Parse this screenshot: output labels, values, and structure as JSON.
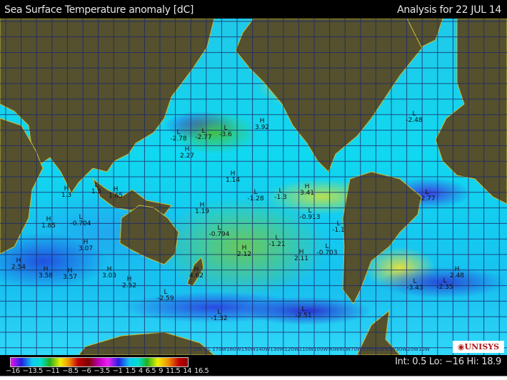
{
  "header": {
    "title": "Sea Surface Temperature anomaly [dC]",
    "analysis": "Analysis for 22 JUL 14"
  },
  "legend": {
    "ticks": [
      "−16",
      "−13.5",
      "−11",
      "−8.5",
      "−6",
      "−3.5",
      "−1",
      "1.5",
      "4",
      "6.5",
      "9",
      "11.5",
      "14",
      "16.5"
    ],
    "info": "Int: 0.5 Lo: −16 Hi: 18.9"
  },
  "logo": "UNISYS",
  "longitude_labels": "20E DL 170W160W150W140W130W120W110W100W90W80W70W60W50W40W30W20W10W",
  "extrema": [
    {
      "type": "H",
      "value": "3.92"
    },
    {
      "type": "L",
      "value": "-2.78"
    },
    {
      "type": "L",
      "value": "-2.77"
    },
    {
      "type": "L",
      "value": "-3.6"
    },
    {
      "type": "H",
      "value": "2.27"
    },
    {
      "type": "H",
      "value": "1.14"
    },
    {
      "type": "L",
      "value": "-1.28"
    },
    {
      "type": "H",
      "value": "1.3"
    },
    {
      "type": "L",
      "value": "1.5"
    },
    {
      "type": "H",
      "value": "1.65"
    },
    {
      "type": "H",
      "value": "1.19"
    },
    {
      "type": "L",
      "value": "-1.3"
    },
    {
      "type": "H",
      "value": "3.41"
    },
    {
      "type": "L",
      "value": "-2.48"
    },
    {
      "type": "L",
      "value": "-2.77"
    },
    {
      "type": "H",
      "value": "1.85"
    },
    {
      "type": "L",
      "value": "-0.704"
    },
    {
      "type": "L",
      "value": "-0.794"
    },
    {
      "type": "H",
      "value": "2.12"
    },
    {
      "type": "L",
      "value": "-0.913"
    },
    {
      "type": "L",
      "value": "-1.1"
    },
    {
      "type": "L",
      "value": "-1.21"
    },
    {
      "type": "H",
      "value": "2.11"
    },
    {
      "type": "L",
      "value": "-0.703"
    },
    {
      "type": "H",
      "value": "3.07"
    },
    {
      "type": "H",
      "value": "2.54"
    },
    {
      "type": "H",
      "value": "3.58"
    },
    {
      "type": "H",
      "value": "3.57"
    },
    {
      "type": "H",
      "value": "3.03"
    },
    {
      "type": "H",
      "value": "2.52"
    },
    {
      "type": "H",
      "value": "4.62"
    },
    {
      "type": "L",
      "value": "-2.59"
    },
    {
      "type": "L",
      "value": "-1.32"
    },
    {
      "type": "L",
      "value": "-2.51"
    },
    {
      "type": "H",
      "value": "2.48"
    },
    {
      "type": "L",
      "value": "-3.43"
    },
    {
      "type": "L",
      "value": "-2.35"
    }
  ]
}
